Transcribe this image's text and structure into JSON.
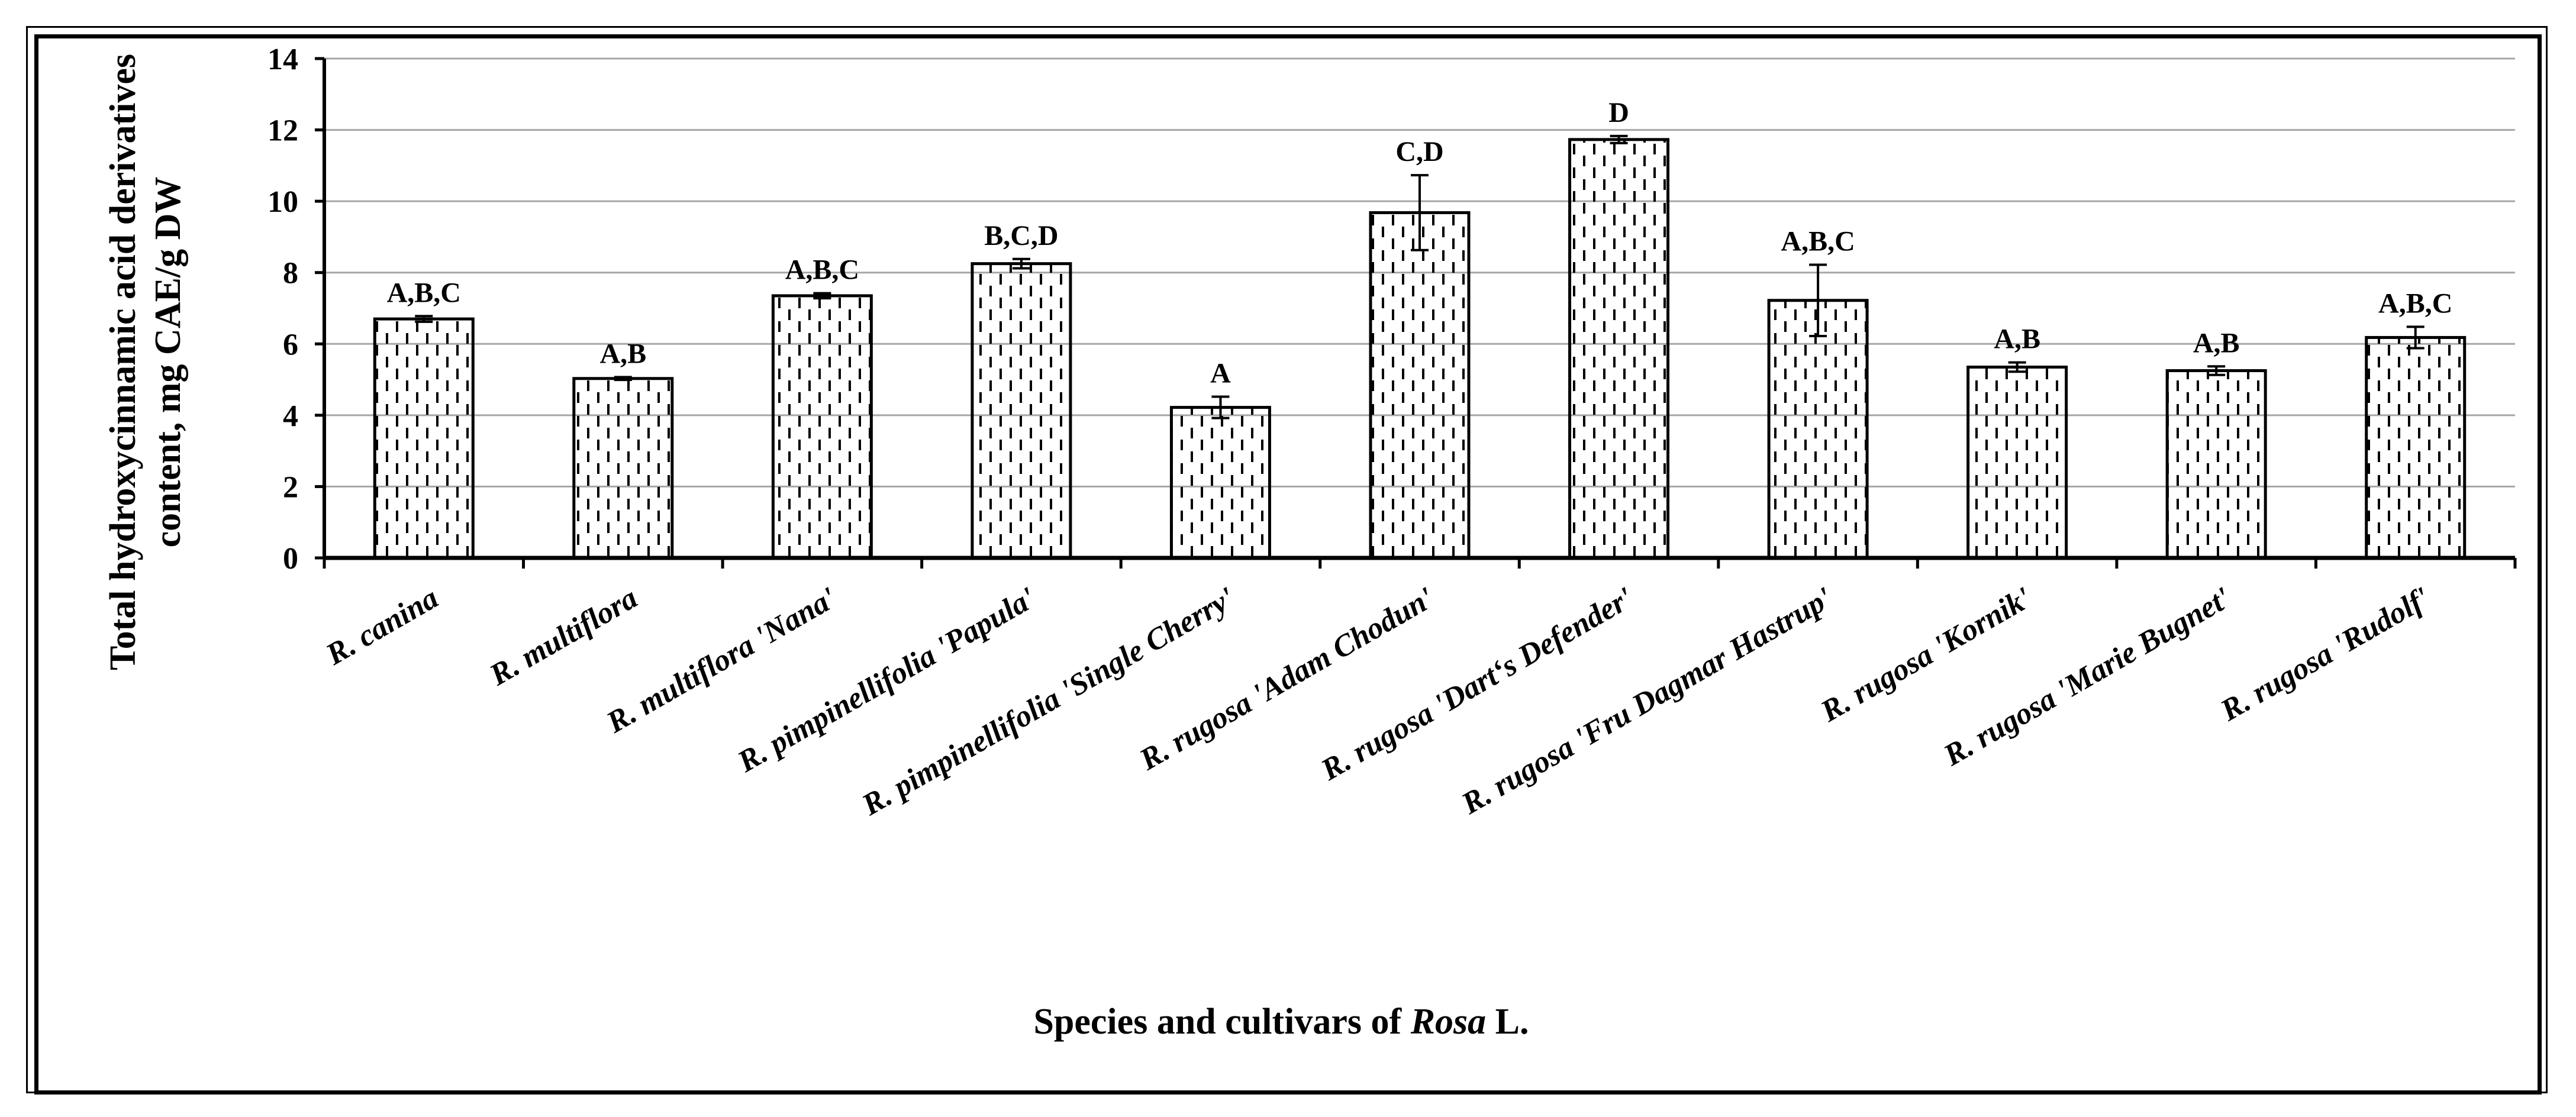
{
  "chart_data": {
    "type": "bar",
    "title": "",
    "ylabel_lines": [
      "Total hydroxycinnamic acid derivatives",
      "content, mg CAE/g DW"
    ],
    "xlabel_prefix": "Species and cultivars of ",
    "xlabel_italic": "Rosa",
    "xlabel_suffix": " L.",
    "ylim": [
      0,
      14
    ],
    "yticks": [
      "0",
      "2",
      "4",
      "6",
      "8",
      "10",
      "12",
      "14"
    ],
    "grid": true,
    "categories": [
      "R. canina",
      "R. multiflora",
      "R. multiflora 'Nana'",
      "R. pimpinellifolia 'Papula'",
      "R. pimpinellifolia 'Single Cherry'",
      "R. rugosa 'Adam Chodun'",
      "R. rugosa 'Dart‘s Defender'",
      "R. rugosa 'Fru Dagmar Hastrup'",
      "R. rugosa 'Kornik'",
      "R. rugosa 'Marie Bugnet'",
      "R. rugosa 'Rudolf'"
    ],
    "values": [
      6.7,
      5.03,
      7.35,
      8.25,
      4.22,
      9.68,
      11.73,
      7.22,
      5.35,
      5.25,
      6.18
    ],
    "errors": [
      0.08,
      0.04,
      0.07,
      0.13,
      0.3,
      1.05,
      0.1,
      1.0,
      0.13,
      0.12,
      0.3
    ],
    "significance": [
      "A,B,C",
      "A,B",
      "A,B,C",
      "B,C,D",
      "A",
      "C,D",
      "D",
      "A,B,C",
      "A,B",
      "A,B",
      "A,B,C"
    ]
  }
}
